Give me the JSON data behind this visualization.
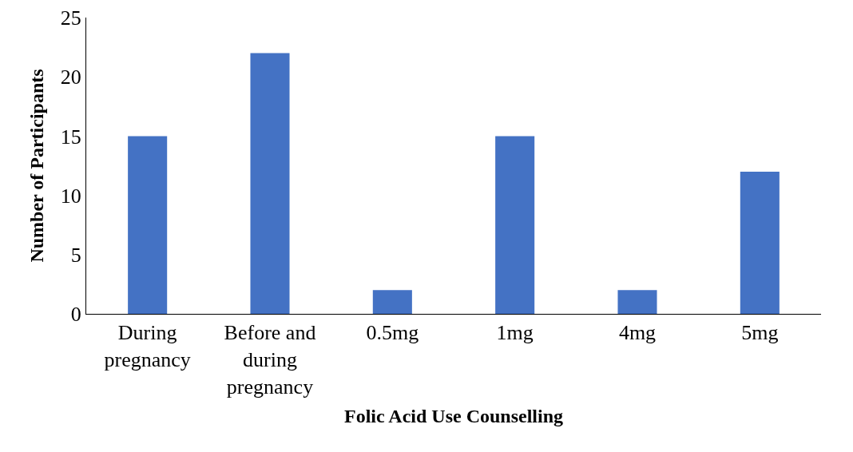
{
  "chart_data": {
    "type": "bar",
    "xlabel": "Folic Acid Use Counselling",
    "ylabel": "Number of Participants",
    "categories": [
      "During pregnancy",
      "Before and during pregnancy",
      "0.5mg",
      "1mg",
      "4mg",
      "5mg"
    ],
    "values": [
      15,
      22,
      2,
      15,
      2,
      12
    ],
    "color": "#4472c4",
    "ylim": [
      0,
      25
    ],
    "yticks": [
      0,
      5,
      10,
      15,
      20,
      25
    ],
    "grid": false,
    "legend": false
  }
}
